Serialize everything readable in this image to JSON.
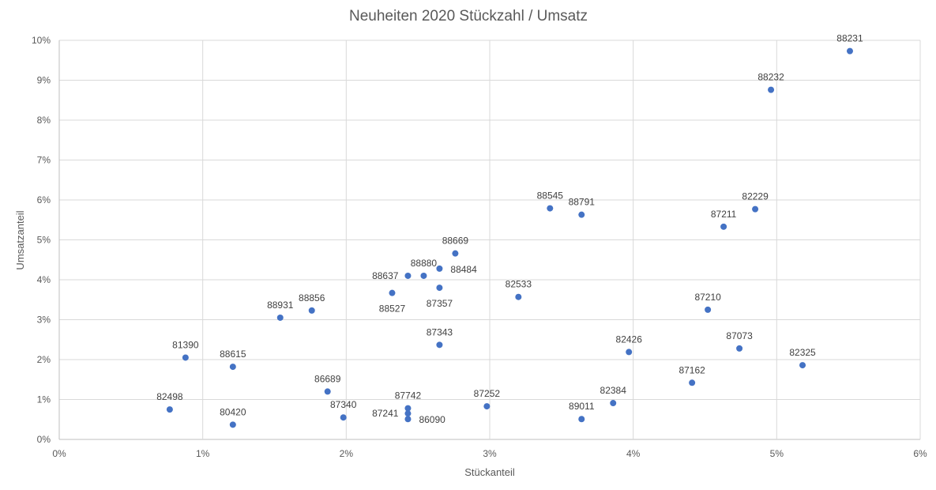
{
  "chart_data": {
    "type": "scatter",
    "title": "Neuheiten 2020 Stückzahl / Umsatz",
    "xlabel": "Stückanteil",
    "ylabel": "Umsatzanteil",
    "xlim": [
      0,
      6
    ],
    "ylim": [
      0,
      10
    ],
    "x_unit": "%",
    "y_unit": "%",
    "x_ticks": [
      "0%",
      "1%",
      "2%",
      "3%",
      "4%",
      "5%",
      "6%"
    ],
    "y_ticks": [
      "0%",
      "1%",
      "2%",
      "3%",
      "4%",
      "5%",
      "6%",
      "7%",
      "8%",
      "9%",
      "10%"
    ],
    "grid": true,
    "legend": "none",
    "marker_color": "#4472c4",
    "points": [
      {
        "label": "88231",
        "x": 5.51,
        "y": 9.73,
        "label_pos": "above"
      },
      {
        "label": "88232",
        "x": 4.96,
        "y": 8.76,
        "label_pos": "above"
      },
      {
        "label": "88545",
        "x": 3.42,
        "y": 5.79,
        "label_pos": "above"
      },
      {
        "label": "88791",
        "x": 3.64,
        "y": 5.63,
        "label_pos": "above"
      },
      {
        "label": "82229",
        "x": 4.85,
        "y": 5.77,
        "label_pos": "above"
      },
      {
        "label": "87211",
        "x": 4.63,
        "y": 5.33,
        "label_pos": "above"
      },
      {
        "label": "88669",
        "x": 2.76,
        "y": 4.66,
        "label_pos": "above"
      },
      {
        "label": "88880",
        "x": 2.54,
        "y": 4.1,
        "label_pos": "above"
      },
      {
        "label": "88637",
        "x": 2.43,
        "y": 4.1,
        "label_pos": "left"
      },
      {
        "label": "88484",
        "x": 2.65,
        "y": 4.28,
        "label_pos": "below-right"
      },
      {
        "label": "87357",
        "x": 2.65,
        "y": 3.8,
        "label_pos": "below"
      },
      {
        "label": "88527",
        "x": 2.32,
        "y": 3.67,
        "label_pos": "below"
      },
      {
        "label": "82533",
        "x": 3.2,
        "y": 3.57,
        "label_pos": "above"
      },
      {
        "label": "88931",
        "x": 1.54,
        "y": 3.05,
        "label_pos": "above"
      },
      {
        "label": "88856",
        "x": 1.76,
        "y": 3.23,
        "label_pos": "above"
      },
      {
        "label": "87210",
        "x": 4.52,
        "y": 3.25,
        "label_pos": "above"
      },
      {
        "label": "87343",
        "x": 2.65,
        "y": 2.37,
        "label_pos": "above"
      },
      {
        "label": "81390",
        "x": 0.88,
        "y": 2.05,
        "label_pos": "above"
      },
      {
        "label": "88615",
        "x": 1.21,
        "y": 1.82,
        "label_pos": "above"
      },
      {
        "label": "82426",
        "x": 3.97,
        "y": 2.19,
        "label_pos": "above"
      },
      {
        "label": "87073",
        "x": 4.74,
        "y": 2.28,
        "label_pos": "above"
      },
      {
        "label": "82325",
        "x": 5.18,
        "y": 1.86,
        "label_pos": "above"
      },
      {
        "label": "87162",
        "x": 4.41,
        "y": 1.42,
        "label_pos": "above"
      },
      {
        "label": "86689",
        "x": 1.87,
        "y": 1.2,
        "label_pos": "above"
      },
      {
        "label": "82384",
        "x": 3.86,
        "y": 0.91,
        "label_pos": "above"
      },
      {
        "label": "87252",
        "x": 2.98,
        "y": 0.83,
        "label_pos": "above"
      },
      {
        "label": "82498",
        "x": 0.77,
        "y": 0.75,
        "label_pos": "above"
      },
      {
        "label": "87742",
        "x": 2.43,
        "y": 0.78,
        "label_pos": "above"
      },
      {
        "label": "87241",
        "x": 2.43,
        "y": 0.65,
        "label_pos": "left"
      },
      {
        "label": "86090",
        "x": 2.43,
        "y": 0.51,
        "label_pos": "right"
      },
      {
        "label": "87340",
        "x": 1.98,
        "y": 0.55,
        "label_pos": "above"
      },
      {
        "label": "89011",
        "x": 3.64,
        "y": 0.51,
        "label_pos": "above"
      },
      {
        "label": "80420",
        "x": 1.21,
        "y": 0.37,
        "label_pos": "above"
      }
    ]
  }
}
